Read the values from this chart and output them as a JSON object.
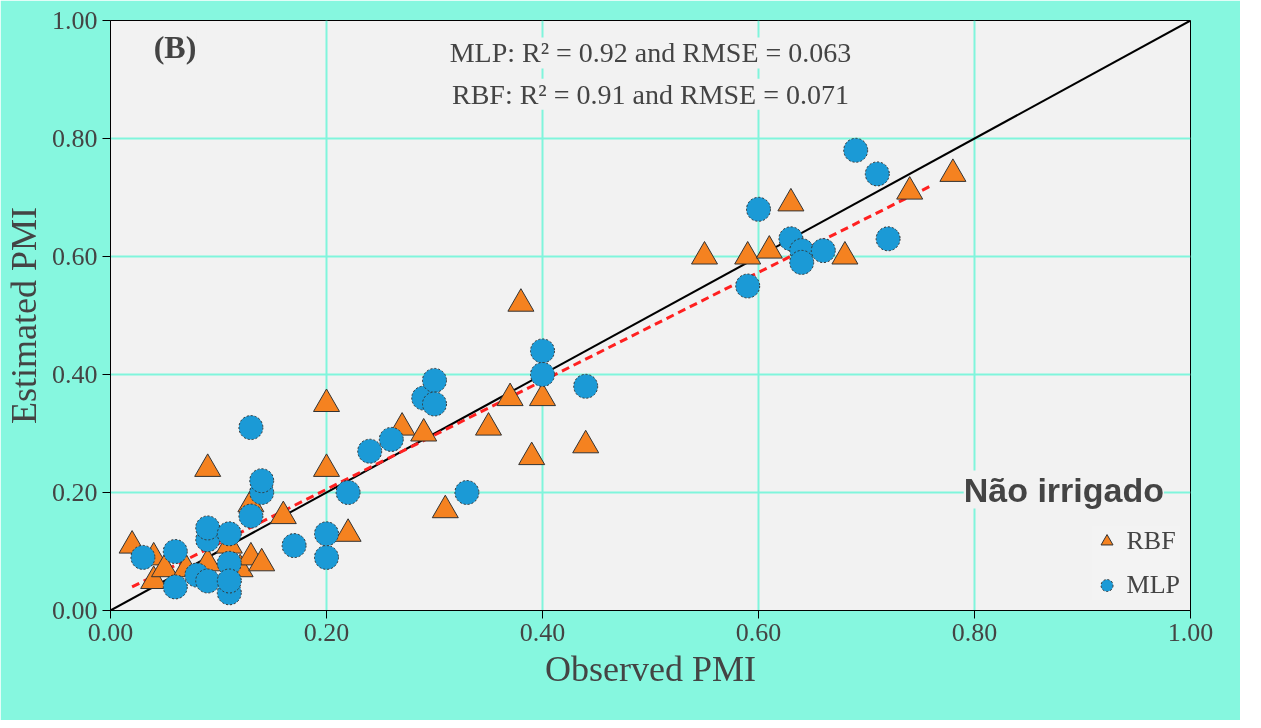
{
  "chart_data": {
    "type": "scatter",
    "xlabel": "Observed PMI",
    "ylabel": "Estimated PMI",
    "xlim": [
      0,
      1
    ],
    "ylim": [
      0,
      1
    ],
    "xticks": [
      {
        "value": 0,
        "label": "0.00"
      },
      {
        "value": 0.2,
        "label": "0.20"
      },
      {
        "value": 0.4,
        "label": "0.40"
      },
      {
        "value": 0.6,
        "label": "0.60"
      },
      {
        "value": 0.8,
        "label": "0.80"
      },
      {
        "value": 1,
        "label": "1.00"
      }
    ],
    "yticks": [
      {
        "value": 0,
        "label": "0.00"
      },
      {
        "value": 0.2,
        "label": "0.20"
      },
      {
        "value": 0.4,
        "label": "0.40"
      },
      {
        "value": 0.6,
        "label": "0.60"
      },
      {
        "value": 0.8,
        "label": "0.80"
      },
      {
        "value": 1,
        "label": "1.00"
      }
    ],
    "grid": true,
    "legend": "bottom right",
    "annotations": [
      "(B)",
      "MLP: R² = 0.92 and RMSE = 0.063",
      "RBF: R² = 0.91 and RMSE = 0.071",
      "Não irrigado"
    ],
    "series": [
      {
        "type": "line",
        "color": "#000000",
        "line_style": "solid",
        "x": [
          0,
          1
        ],
        "values": [
          0,
          1
        ]
      },
      {
        "type": "line",
        "color": "#ff2020",
        "line_style": "dashed",
        "x": [
          0.02,
          0.76
        ],
        "values": [
          0.04,
          0.72
        ]
      },
      {
        "name": "RBF",
        "marker": "triangle",
        "color": "#f58220",
        "x": [
          0.02,
          0.04,
          0.04,
          0.05,
          0.07,
          0.09,
          0.09,
          0.11,
          0.12,
          0.13,
          0.14,
          0.13,
          0.16,
          0.2,
          0.2,
          0.22,
          0.27,
          0.29,
          0.31,
          0.35,
          0.37,
          0.38,
          0.39,
          0.4,
          0.44,
          0.55,
          0.59,
          0.61,
          0.63,
          0.68,
          0.74,
          0.78
        ],
        "values": [
          0.11,
          0.09,
          0.05,
          0.07,
          0.07,
          0.24,
          0.08,
          0.11,
          0.07,
          0.09,
          0.08,
          0.18,
          0.16,
          0.35,
          0.24,
          0.13,
          0.31,
          0.3,
          0.17,
          0.31,
          0.36,
          0.52,
          0.26,
          0.36,
          0.28,
          0.6,
          0.6,
          0.61,
          0.69,
          0.6,
          0.71,
          0.74
        ]
      },
      {
        "name": "MLP",
        "marker": "circle",
        "color": "#1b9ad6",
        "x": [
          0.06,
          0.03,
          0.06,
          0.09,
          0.09,
          0.08,
          0.09,
          0.11,
          0.11,
          0.11,
          0.11,
          0.13,
          0.13,
          0.14,
          0.14,
          0.17,
          0.2,
          0.2,
          0.22,
          0.24,
          0.26,
          0.29,
          0.3,
          0.3,
          0.33,
          0.4,
          0.4,
          0.44,
          0.59,
          0.6,
          0.63,
          0.64,
          0.64,
          0.66,
          0.69,
          0.71,
          0.72
        ],
        "values": [
          0.1,
          0.09,
          0.04,
          0.12,
          0.14,
          0.06,
          0.05,
          0.08,
          0.03,
          0.05,
          0.13,
          0.31,
          0.16,
          0.2,
          0.22,
          0.11,
          0.09,
          0.13,
          0.2,
          0.27,
          0.29,
          0.36,
          0.39,
          0.35,
          0.2,
          0.44,
          0.4,
          0.38,
          0.55,
          0.68,
          0.63,
          0.61,
          0.59,
          0.61,
          0.78,
          0.74,
          0.63
        ]
      }
    ]
  }
}
